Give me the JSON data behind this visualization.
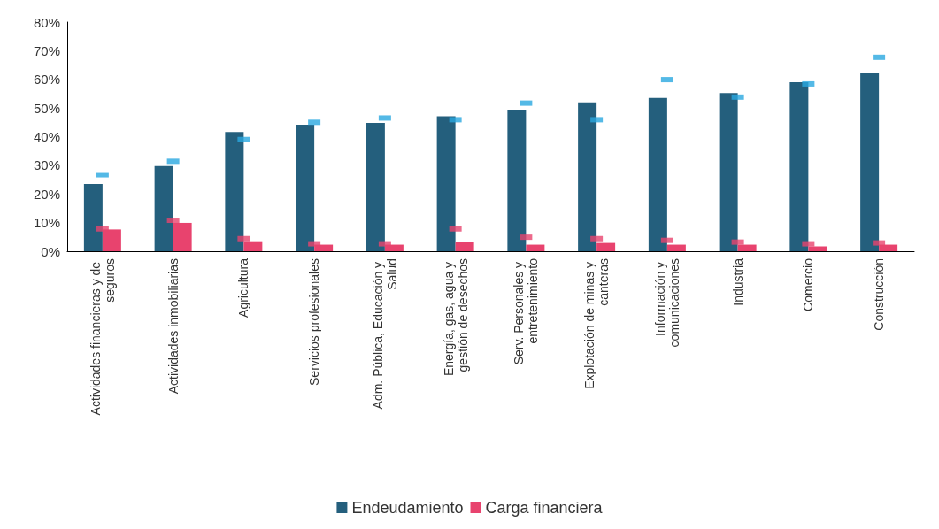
{
  "chart_data": {
    "type": "bar",
    "categories": [
      "Actividades financieras y de seguros",
      "Actividades inmobiliarias",
      "Agricultura",
      "Servicios profesionales",
      "Adm. Pública, Educación y Salud",
      "Energía, gas, agua y gestión de desechos",
      "Serv. Personales y entretenimiento",
      "Explotación de minas y canteras",
      "Información y comunicaciones",
      "Industria",
      "Comercio",
      "Construcción"
    ],
    "series": [
      {
        "name": "Endeudamiento",
        "color": "#245f7d",
        "values": [
          23.5,
          29.7,
          41.6,
          44.2,
          44.8,
          47.1,
          49.4,
          52.0,
          53.5,
          55.2,
          59.0,
          62.2
        ]
      },
      {
        "name": "Carga financiera",
        "color": "#e8436e",
        "values": [
          7.6,
          9.9,
          3.5,
          2.3,
          2.3,
          3.2,
          2.3,
          2.9,
          2.3,
          2.3,
          1.7,
          2.3
        ]
      },
      {
        "type": "scatter",
        "marker": "square",
        "color": "#29a8e0",
        "x": [
          "Actividades financieras y de seguros",
          "Actividades inmobiliarias",
          "Agricultura",
          "Servicios profesionales",
          "Adm. Pública, Educación y Salud",
          "Energía, gas, agua y gestión de desechos",
          "Serv. Personales y entretenimiento",
          "Explotación de minas y canteras",
          "Información y comunicaciones",
          "Industria",
          "Comercio",
          "Construcción"
        ],
        "values": [
          26.7,
          31.4,
          39.0,
          45.0,
          46.5,
          45.9,
          51.7,
          45.9,
          59.9,
          53.8,
          58.4,
          67.7
        ]
      },
      {
        "type": "scatter",
        "marker": "square",
        "color": "#e8436e",
        "x": [
          "Actividades financieras y de seguros",
          "Actividades inmobiliarias",
          "Agricultura",
          "Servicios profesionales",
          "Adm. Pública, Educación y Salud",
          "Energía, gas, agua y gestión de desechos",
          "Serv. Personales y entretenimiento",
          "Explotación de minas y canteras",
          "Información y comunicaciones",
          "Industria",
          "Comercio",
          "Construcción"
        ],
        "values": [
          7.8,
          10.8,
          4.4,
          2.6,
          2.6,
          7.8,
          4.9,
          4.4,
          3.8,
          3.2,
          2.6,
          2.9
        ]
      }
    ],
    "ylim": [
      0,
      80
    ],
    "yticks": [
      {
        "value": 0,
        "label": "0%"
      },
      {
        "value": 10,
        "label": "10%"
      },
      {
        "value": 20,
        "label": "20%"
      },
      {
        "value": 30,
        "label": "30%"
      },
      {
        "value": 40,
        "label": "40%"
      },
      {
        "value": 50,
        "label": "50%"
      },
      {
        "value": 60,
        "label": "60%"
      },
      {
        "value": 70,
        "label": "70%"
      },
      {
        "value": 80,
        "label": "80%"
      }
    ],
    "grid": false,
    "legend": "bottom"
  }
}
